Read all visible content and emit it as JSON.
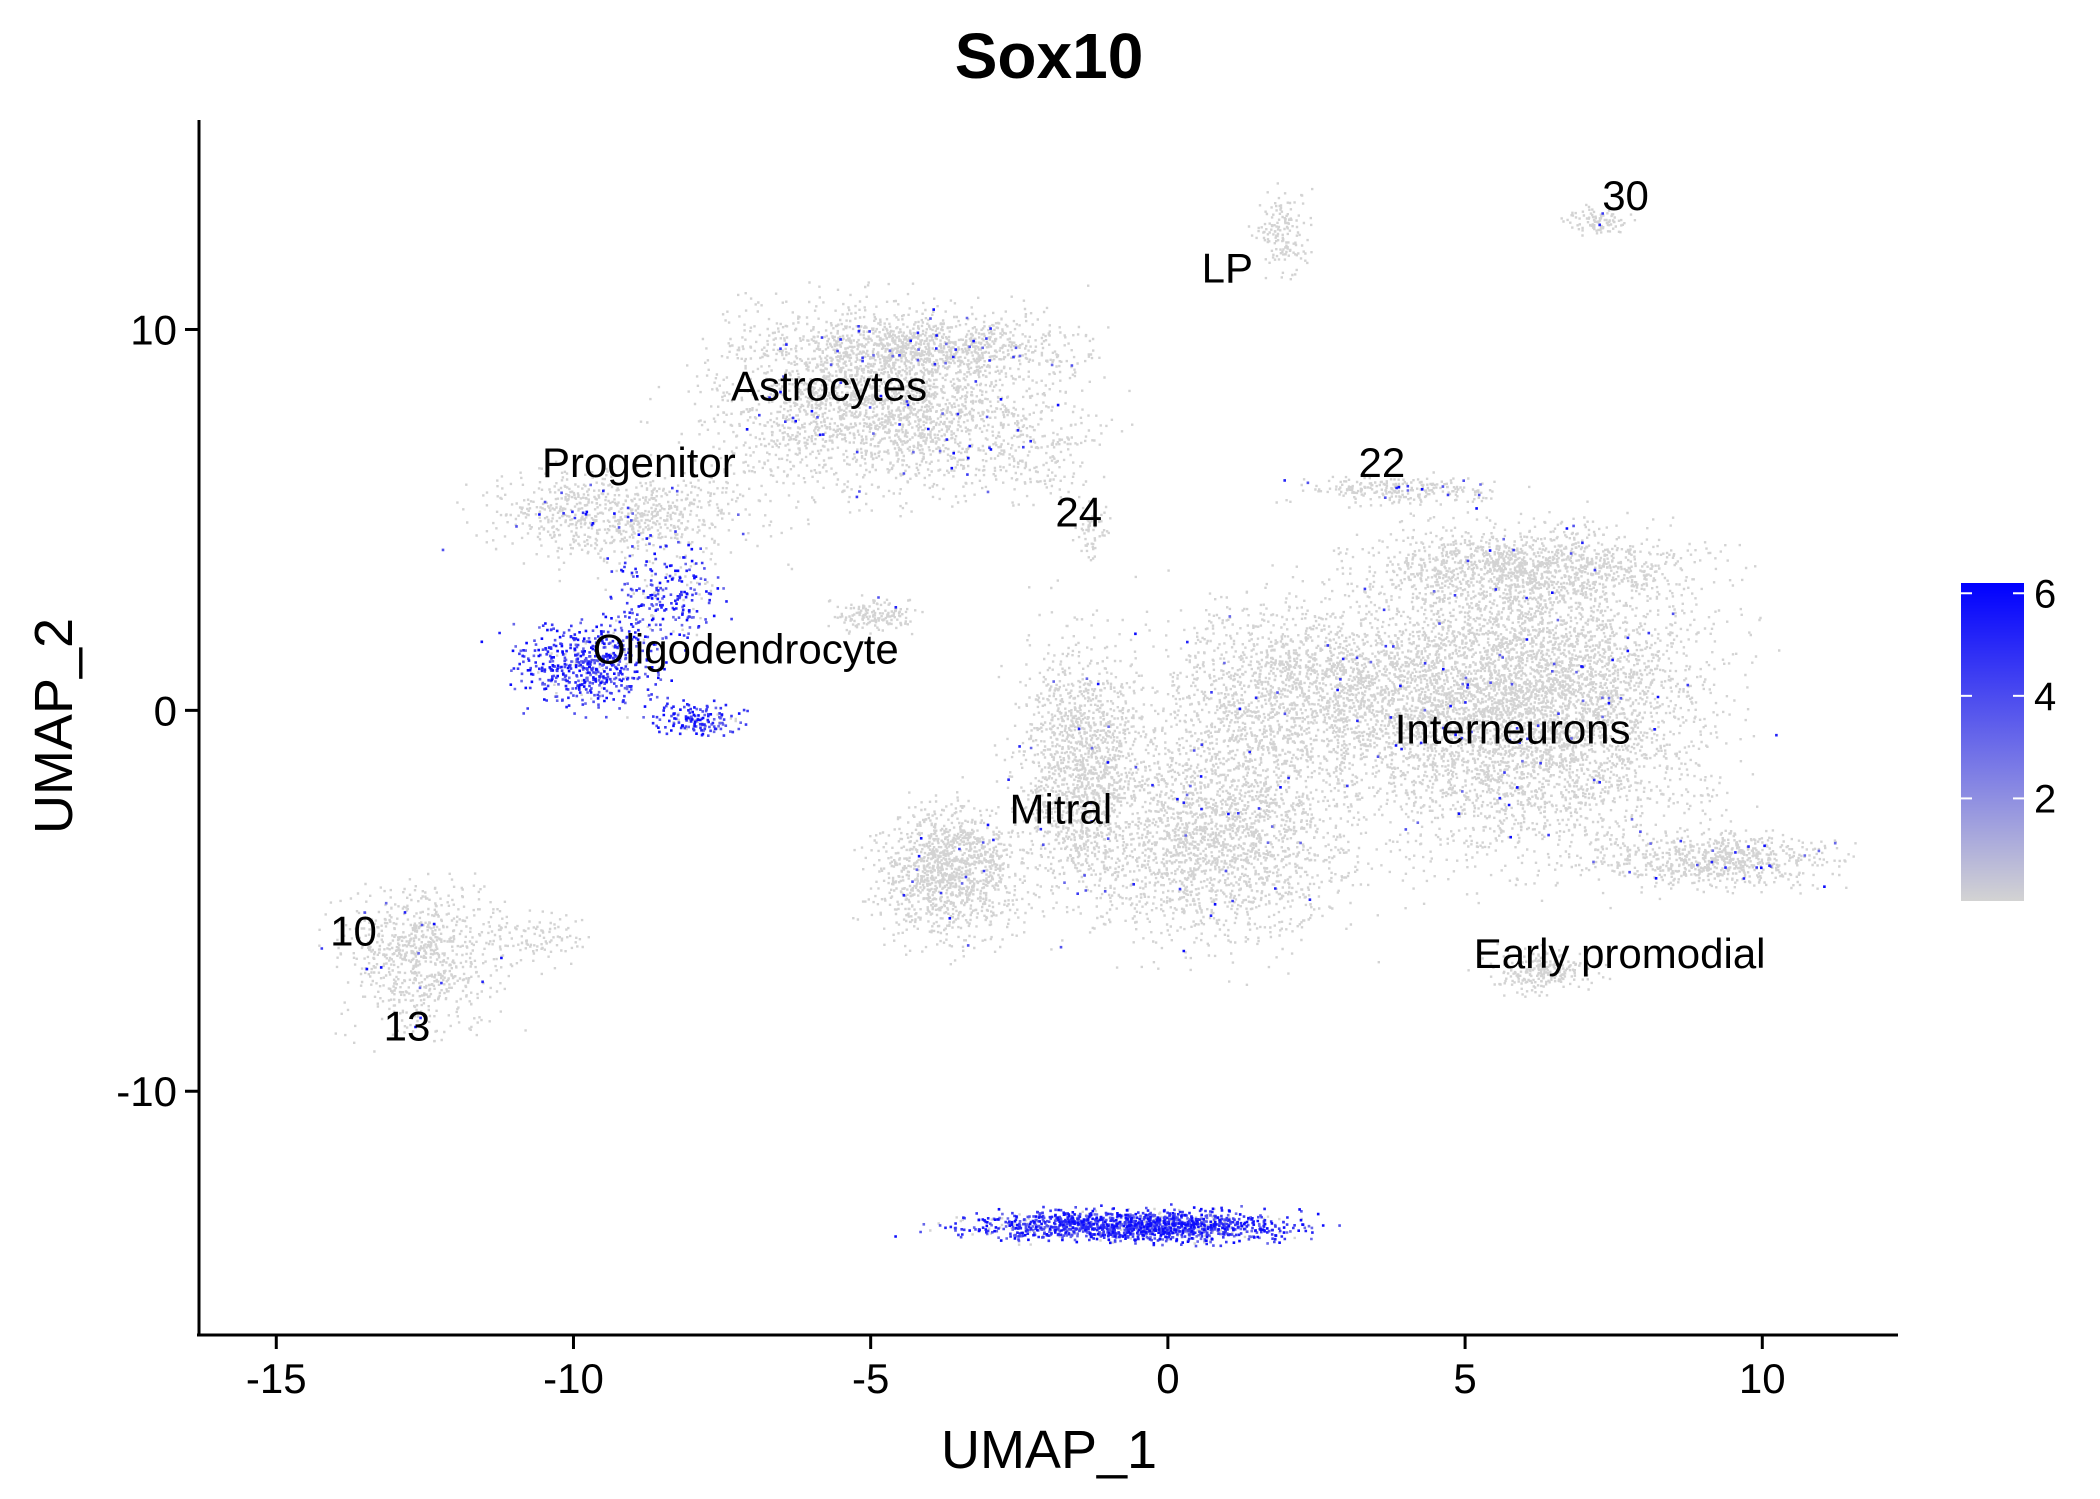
{
  "chart_data": {
    "type": "scatter",
    "title": "Sox10",
    "xlabel": "UMAP_1",
    "ylabel": "UMAP_2",
    "xlim": [
      -16.3,
      12.3
    ],
    "ylim": [
      -16.4,
      15.5
    ],
    "x_ticks": [
      -15,
      -10,
      -5,
      0,
      5,
      10
    ],
    "x_tick_labels": [
      "-15",
      "-10",
      "-5",
      "0",
      "5",
      "10"
    ],
    "y_ticks": [
      -10,
      0,
      10
    ],
    "y_tick_labels": [
      "-10",
      "0",
      "10"
    ],
    "grid": false,
    "legend": {
      "position": "right",
      "type": "color-gradient",
      "range": [
        0,
        6.2
      ],
      "ticks": [
        2,
        4,
        6
      ],
      "tick_labels": [
        "2",
        "4",
        "6"
      ],
      "low_color": "#d3d3d3",
      "high_color": "#0000ff"
    },
    "cluster_labels": [
      {
        "text": "LP",
        "x": 1.0,
        "y": 11.6
      },
      {
        "text": "30",
        "x": 7.7,
        "y": 13.5
      },
      {
        "text": "Astrocytes",
        "x": -5.7,
        "y": 8.5
      },
      {
        "text": "Progenitor",
        "x": -8.9,
        "y": 6.5
      },
      {
        "text": "22",
        "x": 3.6,
        "y": 6.5
      },
      {
        "text": "24",
        "x": -1.5,
        "y": 5.2
      },
      {
        "text": "Oligodendrocyte",
        "x": -7.1,
        "y": 1.6
      },
      {
        "text": "Interneurons",
        "x": 5.8,
        "y": -0.5
      },
      {
        "text": "Mitral",
        "x": -1.8,
        "y": -2.6
      },
      {
        "text": "10",
        "x": -13.7,
        "y": -5.8
      },
      {
        "text": "13",
        "x": -12.8,
        "y": -8.3
      },
      {
        "text": "Early promodial",
        "x": 7.6,
        "y": -6.4
      }
    ],
    "clusters": [
      {
        "x": -4.8,
        "y": 8.2,
        "sx": 2.0,
        "sy": 1.6,
        "n": 2600,
        "expr": 0.02
      },
      {
        "x": -4.0,
        "y": 9.6,
        "sx": 1.6,
        "sy": 0.5,
        "n": 700,
        "expr": 0.02
      },
      {
        "x": -9.3,
        "y": 5.2,
        "sx": 1.6,
        "sy": 0.8,
        "n": 800,
        "expr": 0.03
      },
      {
        "x": -2.3,
        "y": 6.8,
        "sx": 0.8,
        "sy": 0.8,
        "n": 150,
        "expr": 0.01
      },
      {
        "x": -1.3,
        "y": 4.7,
        "sx": 0.2,
        "sy": 0.4,
        "n": 60,
        "expr": 0.0
      },
      {
        "x": 1.9,
        "y": 12.6,
        "sx": 0.3,
        "sy": 0.7,
        "n": 150,
        "expr": 0.0
      },
      {
        "x": 7.2,
        "y": 12.9,
        "sx": 0.4,
        "sy": 0.25,
        "n": 100,
        "expr": 0.01
      },
      {
        "x": 3.9,
        "y": 5.8,
        "sx": 1.1,
        "sy": 0.25,
        "n": 250,
        "expr": 0.04
      },
      {
        "x": -9.8,
        "y": 1.2,
        "sx": 0.8,
        "sy": 0.7,
        "n": 550,
        "expr": 0.92
      },
      {
        "x": -8.5,
        "y": 3.0,
        "sx": 0.6,
        "sy": 0.9,
        "n": 250,
        "expr": 0.85
      },
      {
        "x": -8.0,
        "y": -0.2,
        "sx": 0.5,
        "sy": 0.3,
        "n": 160,
        "expr": 0.85
      },
      {
        "x": -5.0,
        "y": 2.5,
        "sx": 0.5,
        "sy": 0.3,
        "n": 150,
        "expr": 0.02
      },
      {
        "x": -3.7,
        "y": -4.2,
        "sx": 0.8,
        "sy": 1.2,
        "n": 1200,
        "expr": 0.01
      },
      {
        "x": -1.5,
        "y": -1.5,
        "sx": 0.7,
        "sy": 2.3,
        "n": 1400,
        "expr": 0.01
      },
      {
        "x": 0.8,
        "y": -3.2,
        "sx": 1.5,
        "sy": 2.0,
        "n": 2200,
        "expr": 0.01
      },
      {
        "x": 2.5,
        "y": 0.5,
        "sx": 1.8,
        "sy": 1.6,
        "n": 2000,
        "expr": 0.01
      },
      {
        "x": 6.0,
        "y": 0.2,
        "sx": 2.0,
        "sy": 2.6,
        "n": 5200,
        "expr": 0.015
      },
      {
        "x": 6.0,
        "y": 3.8,
        "sx": 1.8,
        "sy": 0.7,
        "n": 1100,
        "expr": 0.01
      },
      {
        "x": 9.3,
        "y": -3.9,
        "sx": 1.3,
        "sy": 0.5,
        "n": 700,
        "expr": 0.02
      },
      {
        "x": 6.3,
        "y": -6.8,
        "sx": 0.6,
        "sy": 0.4,
        "n": 250,
        "expr": 0.0
      },
      {
        "x": -12.6,
        "y": -6.4,
        "sx": 0.9,
        "sy": 1.3,
        "n": 800,
        "expr": 0.02
      },
      {
        "x": -10.6,
        "y": -6.0,
        "sx": 0.6,
        "sy": 0.4,
        "n": 100,
        "expr": 0.0
      },
      {
        "x": -0.6,
        "y": -13.5,
        "sx": 1.8,
        "sy": 0.28,
        "n": 1500,
        "expr": 0.88
      }
    ]
  }
}
